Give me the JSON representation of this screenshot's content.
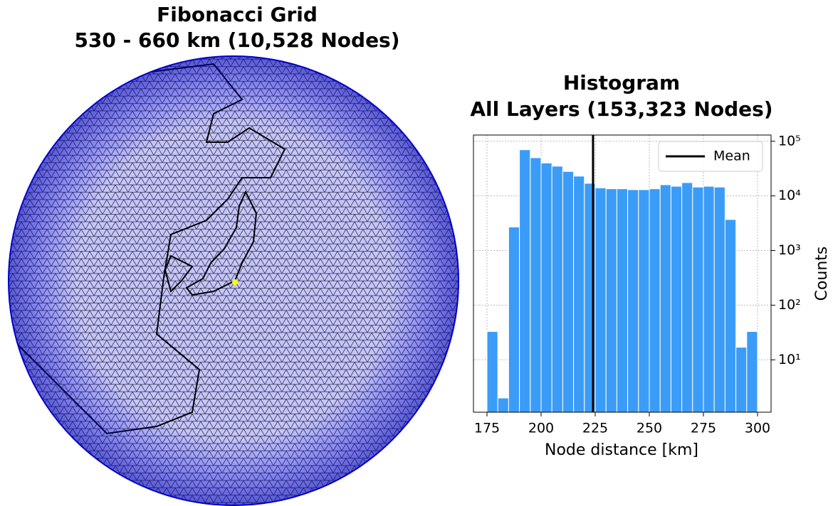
{
  "chart_data": [
    {
      "type": "globe",
      "title": "Fibonacci Grid",
      "subtitle": "530 - 660 km (10,528 Nodes)",
      "color": "#1a1aff"
    },
    {
      "type": "histogram",
      "title": "Histogram",
      "subtitle": "All Layers (153,323 Nodes)",
      "x_label": "Node distance [km]",
      "y_label": "Counts",
      "bins": [
        175,
        180,
        185,
        190,
        195,
        200,
        205,
        210,
        215,
        220,
        225,
        230,
        235,
        240,
        245,
        250,
        255,
        260,
        265,
        270,
        275,
        280,
        285,
        290,
        295,
        300
      ],
      "counts": [
        33,
        2,
        2700,
        70000,
        50000,
        40000,
        35000,
        28000,
        23000,
        17000,
        14000,
        13500,
        13500,
        13000,
        13000,
        13500,
        16000,
        15000,
        17500,
        14500,
        15000,
        14500,
        3700,
        17,
        33
      ],
      "color": "#3b9cf7",
      "vlines": [
        {
          "name": "Mean",
          "value": 224,
          "color": "#000000"
        }
      ],
      "xlim": [
        168.75,
        306.25
      ],
      "xticks": [
        175,
        200,
        225,
        250,
        275,
        300
      ],
      "ylim": [
        1.1,
        130000
      ],
      "log_y": true,
      "yticks": [
        {
          "value": 10,
          "label": "10¹"
        },
        {
          "value": 100,
          "label": "10²"
        },
        {
          "value": 1000,
          "label": "10³"
        },
        {
          "value": 10000,
          "label": "10⁴"
        },
        {
          "value": 100000,
          "label": "10⁵"
        }
      ],
      "grid": true,
      "legend": "upper right"
    }
  ]
}
